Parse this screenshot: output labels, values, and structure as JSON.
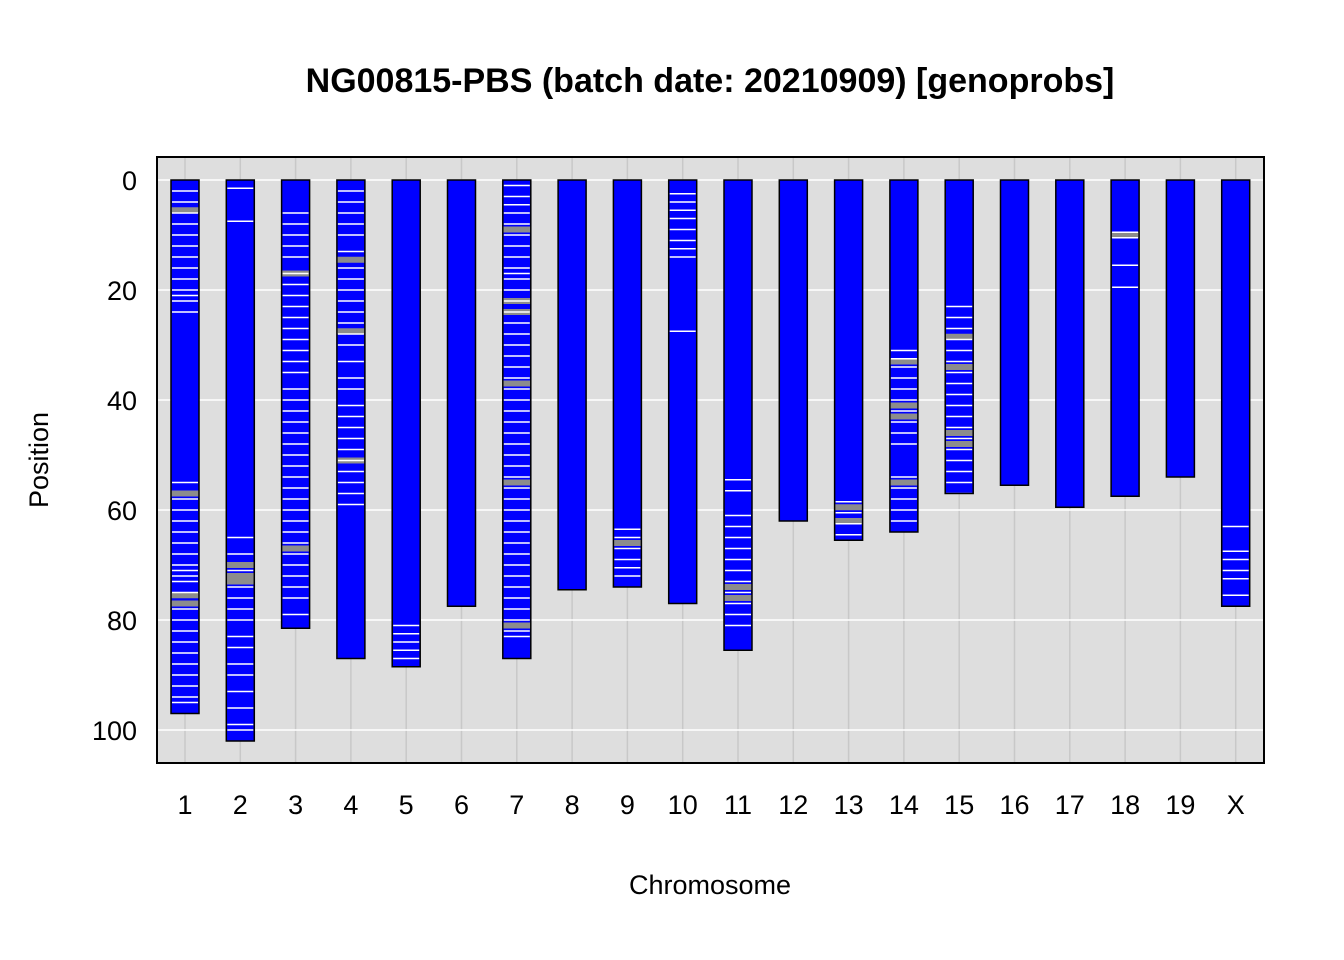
{
  "chart_data": {
    "type": "chromosome-genotype",
    "title": "NG00815-PBS (batch date: 20210909) [genoprobs]",
    "xlabel": "Chromosome",
    "ylabel": "Position",
    "ylim": [
      0,
      105
    ],
    "y_reversed": true,
    "yticks": [
      0,
      20,
      40,
      60,
      80,
      100
    ],
    "grid": true,
    "colors": {
      "panel_background": "#dedede",
      "gridline": "#ffffff",
      "minor_gridline": "#c8c8c8",
      "chromosome_fill": "#0000ff",
      "chromosome_border": "#000000",
      "marker_white": "#ffffff",
      "marker_gray": "#8c8c8c"
    },
    "chromosomes": [
      {
        "name": "1",
        "length": 97,
        "white": [
          2,
          4,
          6,
          8,
          10,
          12,
          14,
          16,
          18,
          20,
          21,
          22,
          24,
          55,
          58,
          60,
          62,
          64,
          66,
          68,
          70,
          71,
          72,
          73,
          75,
          78,
          80,
          82,
          84,
          86,
          88,
          90,
          92,
          94,
          95
        ],
        "gray": [
          5.5,
          57,
          75.5,
          77
        ]
      },
      {
        "name": "2",
        "length": 102,
        "white": [
          1.5,
          7.5,
          65,
          68,
          71,
          74,
          76,
          78,
          80,
          83,
          85,
          88,
          90,
          93,
          96,
          99,
          100
        ],
        "gray": [
          70,
          72,
          73
        ]
      },
      {
        "name": "3",
        "length": 81.5,
        "white": [
          6,
          8,
          10,
          12,
          14,
          17,
          19,
          21,
          23,
          25,
          27,
          29,
          31,
          33,
          35,
          38,
          40,
          42,
          44,
          46,
          48,
          50,
          52,
          54,
          56,
          58,
          60,
          62,
          64,
          66,
          68,
          70,
          72,
          74,
          76,
          79
        ],
        "gray": [
          17,
          67
        ]
      },
      {
        "name": "4",
        "length": 87,
        "white": [
          2,
          4,
          6,
          8,
          10,
          13,
          16,
          18,
          20,
          22,
          24,
          26,
          28,
          30,
          33,
          36,
          38,
          41,
          43,
          45,
          47,
          49,
          51,
          53,
          55,
          57,
          59
        ],
        "gray": [
          14.5,
          27.5,
          51
        ]
      },
      {
        "name": "5",
        "length": 88.5,
        "white": [
          81,
          82.5,
          84,
          85.5,
          87
        ],
        "gray": []
      },
      {
        "name": "6",
        "length": 77.5,
        "white": [],
        "gray": []
      },
      {
        "name": "7",
        "length": 87,
        "white": [
          1,
          3,
          4.5,
          6,
          8,
          10,
          12,
          14,
          16,
          17,
          18,
          20,
          22,
          24,
          26,
          28,
          30,
          32,
          34,
          36,
          38,
          40,
          42,
          44,
          46,
          48,
          50,
          52,
          54,
          56,
          58,
          60,
          62,
          64,
          66,
          68,
          70,
          72,
          74,
          76,
          78,
          80,
          82,
          83
        ],
        "gray": [
          9,
          22,
          24,
          37,
          55,
          81
        ]
      },
      {
        "name": "8",
        "length": 74.5,
        "white": [],
        "gray": []
      },
      {
        "name": "9",
        "length": 74,
        "white": [
          63.5,
          65,
          67,
          69,
          70.5,
          72
        ],
        "gray": [
          66
        ]
      },
      {
        "name": "10",
        "length": 77,
        "white": [
          2.5,
          4,
          5.5,
          7,
          9,
          11,
          12.5,
          14,
          27.5
        ],
        "gray": []
      },
      {
        "name": "11",
        "length": 85.5,
        "white": [
          54.5,
          56.5,
          61,
          63,
          65,
          67,
          69,
          71,
          73,
          75,
          77,
          79,
          81
        ],
        "gray": [
          74,
          76
        ]
      },
      {
        "name": "12",
        "length": 62,
        "white": [],
        "gray": []
      },
      {
        "name": "13",
        "length": 65.5,
        "white": [
          58.5,
          60.5,
          62.5,
          64.5
        ],
        "gray": [
          59.5,
          62
        ]
      },
      {
        "name": "14",
        "length": 64,
        "white": [
          31,
          32.5,
          34,
          36,
          38,
          40,
          42,
          44,
          46,
          48,
          54,
          56,
          58,
          60,
          62
        ],
        "gray": [
          33,
          41,
          43,
          55
        ]
      },
      {
        "name": "15",
        "length": 57,
        "white": [
          23,
          25,
          27,
          29,
          31,
          33,
          35,
          37,
          39,
          41,
          43,
          45,
          47,
          49,
          51,
          53,
          55,
          57
        ],
        "gray": [
          28.5,
          34,
          46,
          48
        ]
      },
      {
        "name": "16",
        "length": 55.5,
        "white": [],
        "gray": []
      },
      {
        "name": "17",
        "length": 59.5,
        "white": [],
        "gray": []
      },
      {
        "name": "18",
        "length": 57.5,
        "white": [
          9.5,
          10.5,
          15.5,
          19.5
        ],
        "gray": [
          10
        ]
      },
      {
        "name": "19",
        "length": 54,
        "white": [],
        "gray": []
      },
      {
        "name": "X",
        "length": 77.5,
        "white": [
          63,
          67.5,
          69,
          71,
          72.5,
          75.5
        ],
        "gray": []
      }
    ]
  }
}
